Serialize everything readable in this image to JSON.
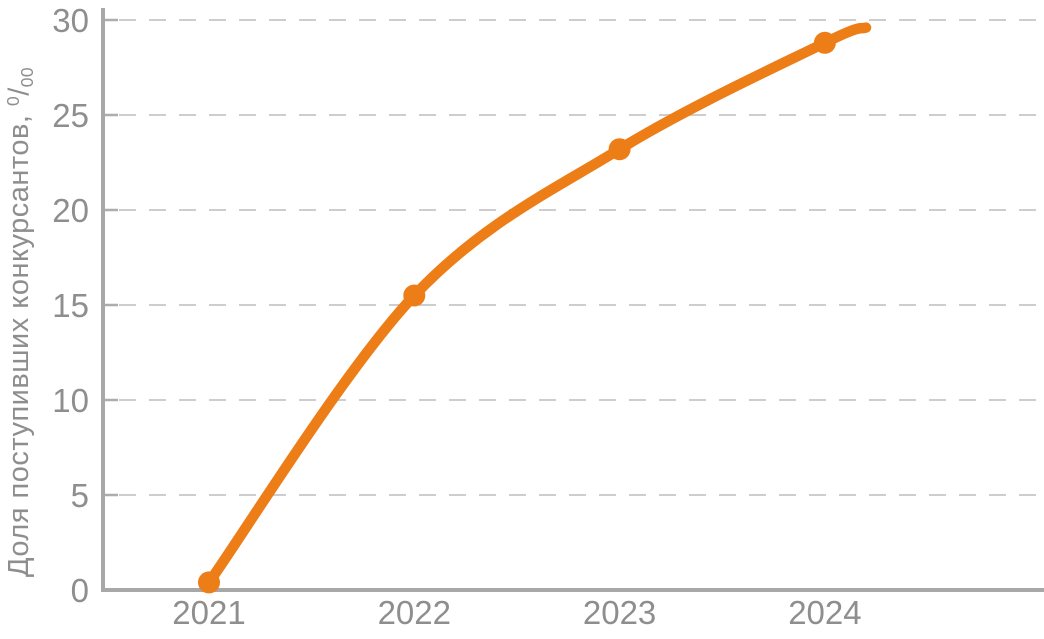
{
  "chart_data": {
    "type": "line",
    "title": "",
    "ylabel_main": "Доля поступивших конкурсантов,",
    "ylabel_unit_sup": "0",
    "ylabel_unit_slash": "/",
    "ylabel_unit_sub": "00",
    "x": [
      2021,
      2022,
      2023,
      2024
    ],
    "x_tick_labels": [
      "2021",
      "2022",
      "2023",
      "2024"
    ],
    "y_ticks": [
      "0",
      "5",
      "10",
      "15",
      "20",
      "25",
      "30"
    ],
    "y_tick_values": [
      0,
      5,
      10,
      15,
      20,
      25,
      30
    ],
    "ylim": [
      0,
      30
    ],
    "xlim": [
      2020.49,
      2025.07
    ],
    "grid": "horizontal-dashed",
    "legend": "none",
    "series": [
      {
        "values": [
          0.4,
          15.5,
          23.2,
          28.8
        ],
        "line_end_extension": {
          "x": 2024.2,
          "y": 29.6
        },
        "color": "#ED7D17"
      }
    ],
    "colors": {
      "line": "#ED7D17",
      "axis": "#A8A8A8",
      "tick_label": "#8E8E8E",
      "gridline": "#CDCDCD",
      "tick_mark": "#ADADAD"
    }
  }
}
